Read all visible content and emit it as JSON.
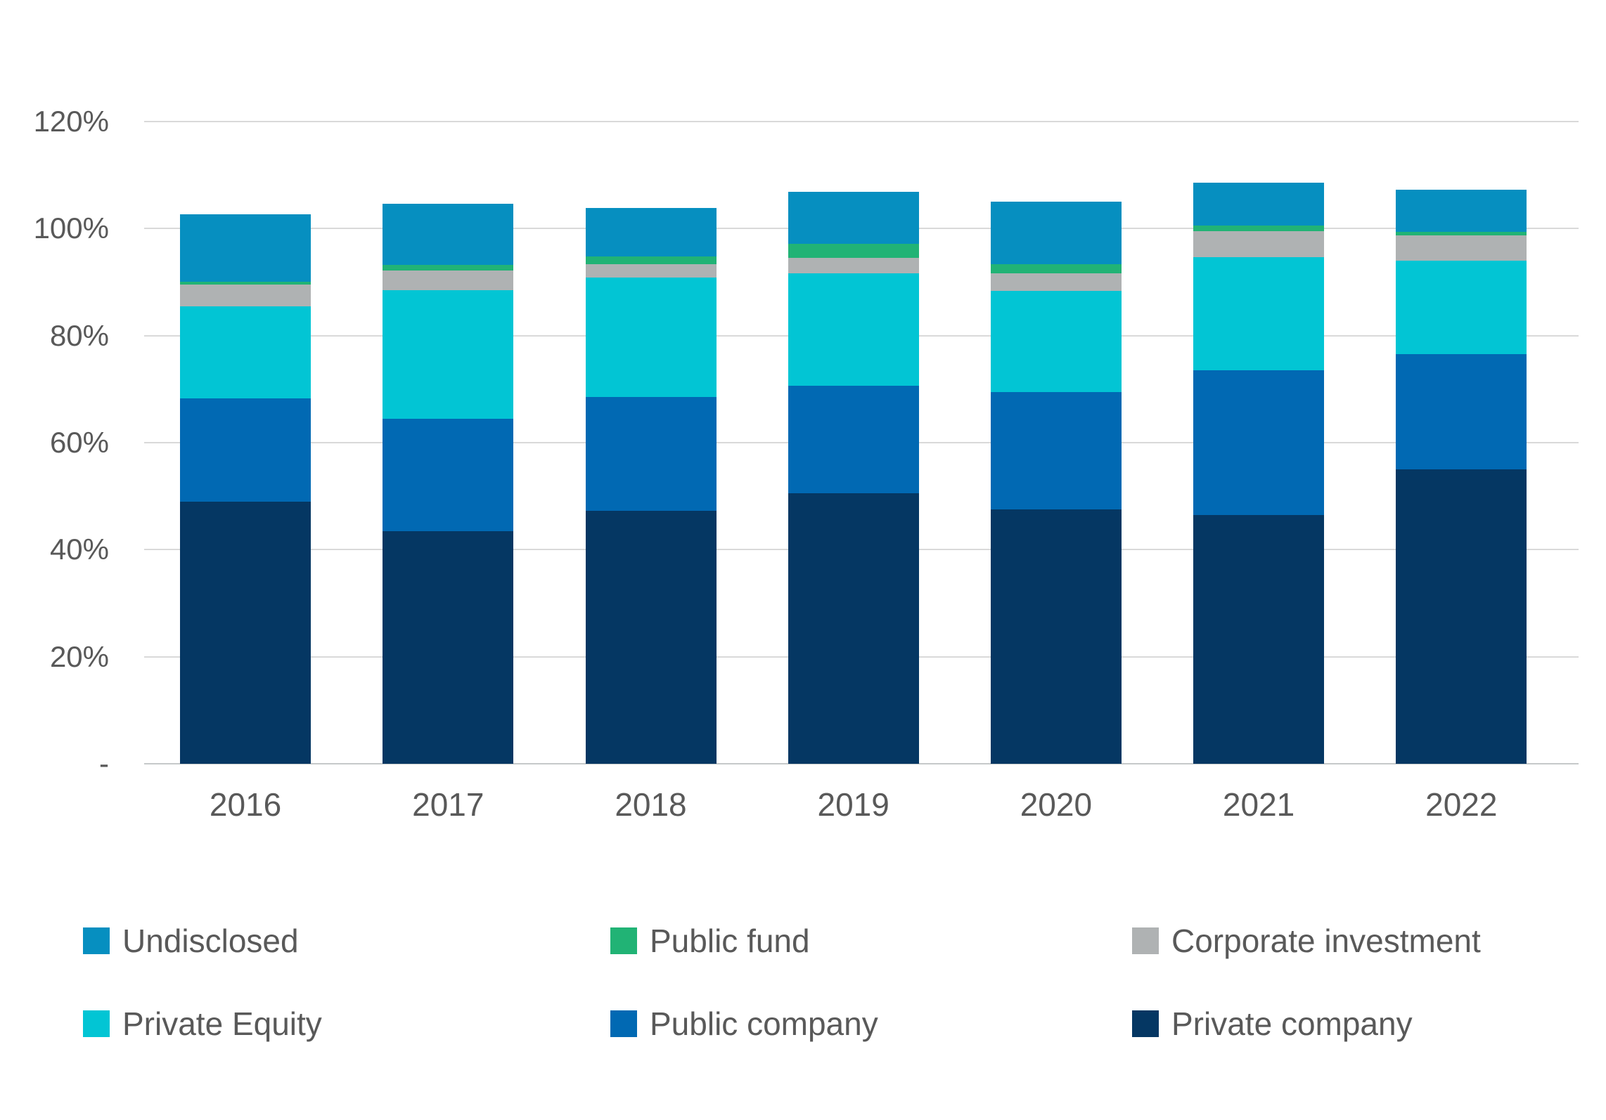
{
  "chart_data": {
    "type": "bar",
    "stacked": true,
    "title": "",
    "xlabel": "",
    "ylabel": "",
    "categories": [
      "2016",
      "2017",
      "2018",
      "2019",
      "2020",
      "2021",
      "2022"
    ],
    "series": [
      {
        "name": "Private company",
        "color": "#053763",
        "values": [
          49.0,
          43.5,
          47.3,
          50.6,
          47.5,
          46.5,
          55.0
        ]
      },
      {
        "name": "Public company",
        "color": "#0169B3",
        "values": [
          19.3,
          21.0,
          21.2,
          20.1,
          22.0,
          27.0,
          21.5
        ]
      },
      {
        "name": "Private Equity",
        "color": "#02C5D4",
        "values": [
          17.2,
          24.0,
          22.4,
          21.0,
          18.8,
          21.2,
          17.5
        ]
      },
      {
        "name": "Corporate investment",
        "color": "#AFB2B3",
        "values": [
          4.0,
          3.7,
          2.4,
          2.8,
          3.4,
          4.8,
          4.8
        ]
      },
      {
        "name": "Public fund",
        "color": "#21B375",
        "values": [
          0.6,
          1.0,
          1.5,
          2.6,
          1.6,
          1.1,
          0.6
        ]
      },
      {
        "name": "Undisclosed",
        "color": "#068FC0",
        "values": [
          12.6,
          11.5,
          9.1,
          9.8,
          11.8,
          8.0,
          7.9
        ]
      }
    ],
    "y_axis": {
      "ylim": [
        0,
        120
      ],
      "ticks": [
        {
          "value": 0,
          "label": "-"
        },
        {
          "value": 20,
          "label": "20%"
        },
        {
          "value": 40,
          "label": "40%"
        },
        {
          "value": 60,
          "label": "60%"
        },
        {
          "value": 80,
          "label": "80%"
        },
        {
          "value": 100,
          "label": "100%"
        },
        {
          "value": 120,
          "label": "120%"
        }
      ]
    },
    "grid": true,
    "legend": {
      "position": "bottom",
      "entries": [
        {
          "label": "Undisclosed",
          "color": "#068FC0"
        },
        {
          "label": "Public fund",
          "color": "#21B375"
        },
        {
          "label": "Corporate investment",
          "color": "#AFB2B3"
        },
        {
          "label": "Private Equity",
          "color": "#02C5D4"
        },
        {
          "label": "Public company",
          "color": "#0169B3"
        },
        {
          "label": "Private company",
          "color": "#053763"
        }
      ]
    },
    "colors": {
      "background": "#FFFFFF",
      "axis_text": "#595959",
      "gridline": "#D9D9D9",
      "baseline": "#C6C9CA"
    }
  }
}
